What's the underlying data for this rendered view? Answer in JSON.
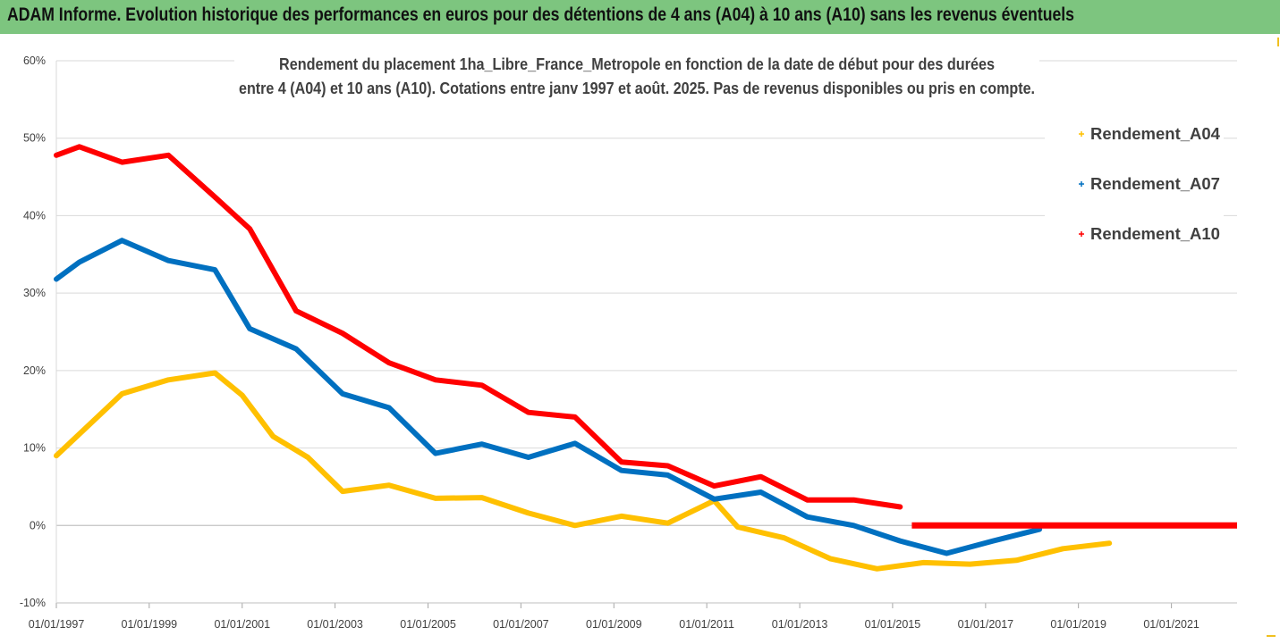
{
  "header": {
    "title": "ADAM Informe. Evolution historique des performances en euros pour des détentions de 4 ans (A04) à 10 ans (A10) sans les revenus éventuels"
  },
  "colors": {
    "banner": "#7dc57f",
    "A04": "#ffc000",
    "A07": "#0070c0",
    "A10": "#ff0000",
    "grid": "#d9d9d9"
  },
  "chart_data": {
    "type": "line",
    "title_lines": [
      "Rendement du placement 1ha_Libre_France_Metropole en fonction de la date de début pour des durées",
      "entre 4 (A04) et 10 ans (A10). Cotations entre janv 1997 et août. 2025. Pas de revenus disponibles ou pris en compte."
    ],
    "xlabel": "",
    "ylabel": "",
    "x_range": [
      "01/01/1997",
      "2022-06-01"
    ],
    "ylim": [
      -10,
      60
    ],
    "y_ticks": [
      "-10%",
      "0%",
      "10%",
      "20%",
      "30%",
      "40%",
      "50%",
      "60%"
    ],
    "y_tick_values": [
      -10,
      0,
      10,
      20,
      30,
      40,
      50,
      60
    ],
    "x_tick_labels": [
      "01/01/1997",
      "01/01/1999",
      "01/01/2001",
      "01/01/2003",
      "01/01/2005",
      "01/01/2007",
      "01/01/2009",
      "01/01/2011",
      "01/01/2013",
      "01/01/2015",
      "01/01/2017",
      "01/01/2019",
      "01/01/2021"
    ],
    "grid": true,
    "legend_position": "right",
    "series": [
      {
        "name": "Rendement_A04",
        "color": "#ffc000",
        "points": [
          [
            "1997-01-01",
            9.0
          ],
          [
            "1998-06-01",
            17.0
          ],
          [
            "1999-06-01",
            18.8
          ],
          [
            "2000-06-01",
            19.7
          ],
          [
            "2001-01-01",
            16.8
          ],
          [
            "2001-09-01",
            11.5
          ],
          [
            "2002-06-01",
            8.8
          ],
          [
            "2003-03-01",
            4.4
          ],
          [
            "2004-03-01",
            5.2
          ],
          [
            "2005-03-01",
            3.5
          ],
          [
            "2006-03-01",
            3.6
          ],
          [
            "2007-03-01",
            1.6
          ],
          [
            "2008-03-01",
            0.0
          ],
          [
            "2009-03-01",
            1.2
          ],
          [
            "2010-03-01",
            0.3
          ],
          [
            "2011-03-01",
            3.2
          ],
          [
            "2011-09-01",
            -0.2
          ],
          [
            "2012-09-01",
            -1.6
          ],
          [
            "2013-09-01",
            -4.3
          ],
          [
            "2014-09-01",
            -5.6
          ],
          [
            "2015-09-01",
            -4.8
          ],
          [
            "2016-09-01",
            -5.0
          ],
          [
            "2017-09-01",
            -4.5
          ],
          [
            "2018-09-01",
            -3.0
          ],
          [
            "2019-09-01",
            -2.3
          ]
        ]
      },
      {
        "name": "Rendement_A07",
        "color": "#0070c0",
        "points": [
          [
            "1997-01-01",
            31.8
          ],
          [
            "1997-07-01",
            34.0
          ],
          [
            "1998-06-01",
            36.8
          ],
          [
            "1999-06-01",
            34.2
          ],
          [
            "2000-06-01",
            33.0
          ],
          [
            "2001-03-01",
            25.4
          ],
          [
            "2002-03-01",
            22.8
          ],
          [
            "2003-03-01",
            17.0
          ],
          [
            "2004-03-01",
            15.2
          ],
          [
            "2005-03-01",
            9.3
          ],
          [
            "2006-03-01",
            10.5
          ],
          [
            "2007-03-01",
            8.8
          ],
          [
            "2008-03-01",
            10.6
          ],
          [
            "2009-03-01",
            7.1
          ],
          [
            "2010-03-01",
            6.5
          ],
          [
            "2011-03-01",
            3.4
          ],
          [
            "2012-03-01",
            4.3
          ],
          [
            "2013-03-01",
            1.1
          ],
          [
            "2014-03-01",
            0.0
          ],
          [
            "2015-03-01",
            -2.0
          ],
          [
            "2016-03-01",
            -3.6
          ],
          [
            "2017-03-01",
            -2.0
          ],
          [
            "2018-03-01",
            -0.5
          ]
        ]
      },
      {
        "name": "Rendement_A10",
        "color": "#ff0000",
        "points": [
          [
            "1997-01-01",
            47.8
          ],
          [
            "1997-07-01",
            48.9
          ],
          [
            "1998-06-01",
            46.9
          ],
          [
            "1999-06-01",
            47.8
          ],
          [
            "2000-06-01",
            42.4
          ],
          [
            "2001-03-01",
            38.3
          ],
          [
            "2002-03-01",
            27.7
          ],
          [
            "2003-03-01",
            24.8
          ],
          [
            "2004-03-01",
            21.0
          ],
          [
            "2005-03-01",
            18.8
          ],
          [
            "2006-03-01",
            18.1
          ],
          [
            "2007-03-01",
            14.6
          ],
          [
            "2008-03-01",
            14.0
          ],
          [
            "2009-03-01",
            8.2
          ],
          [
            "2010-03-01",
            7.7
          ],
          [
            "2011-03-01",
            5.1
          ],
          [
            "2012-03-01",
            6.3
          ],
          [
            "2013-03-01",
            3.3
          ],
          [
            "2014-03-01",
            3.3
          ],
          [
            "2015-03-01",
            2.4
          ]
        ],
        "zero_segment": [
          [
            "2015-06-01",
            0.0
          ],
          [
            "2022-06-01",
            0.0
          ]
        ]
      }
    ]
  }
}
